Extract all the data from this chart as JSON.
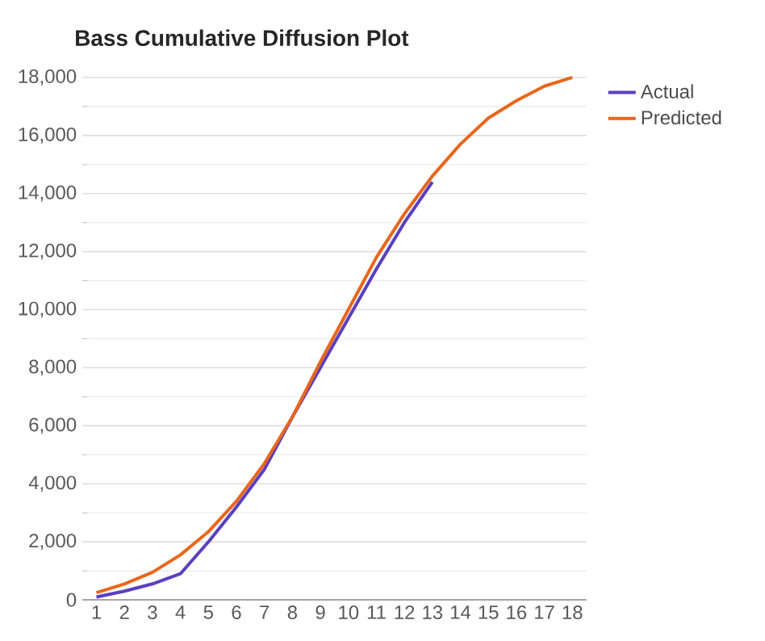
{
  "chart_data": {
    "type": "line",
    "title": "Bass Cumulative Diffusion Plot",
    "categories": [
      "1",
      "2",
      "3",
      "4",
      "5",
      "6",
      "7",
      "8",
      "9",
      "10",
      "11",
      "12",
      "13",
      "14",
      "15",
      "16",
      "17",
      "18"
    ],
    "series": [
      {
        "name": "Actual",
        "color": "#5b3fbf",
        "values": [
          100,
          300,
          550,
          900,
          2000,
          3200,
          4500,
          6300,
          8000,
          9700,
          11400,
          13000,
          14400,
          null,
          null,
          null,
          null,
          null
        ]
      },
      {
        "name": "Predicted",
        "color": "#e8661c",
        "values": [
          250,
          550,
          950,
          1550,
          2350,
          3400,
          4700,
          6300,
          8200,
          10000,
          11800,
          13300,
          14600,
          15700,
          16600,
          17200,
          17700,
          18000
        ]
      }
    ],
    "ylim": [
      0,
      18000
    ],
    "yticks": [
      {
        "value": 0,
        "label": "0"
      },
      {
        "value": 2000,
        "label": "2,000"
      },
      {
        "value": 4000,
        "label": "4,000"
      },
      {
        "value": 6000,
        "label": "6,000"
      },
      {
        "value": 8000,
        "label": "8,000"
      },
      {
        "value": 10000,
        "label": "10,000"
      },
      {
        "value": 12000,
        "label": "12,000"
      },
      {
        "value": 14000,
        "label": "14,000"
      },
      {
        "value": 16000,
        "label": "16,000"
      },
      {
        "value": 18000,
        "label": "18,000"
      }
    ],
    "grid": "y",
    "legend": "top right",
    "marker": "none",
    "line_style": "solid"
  }
}
